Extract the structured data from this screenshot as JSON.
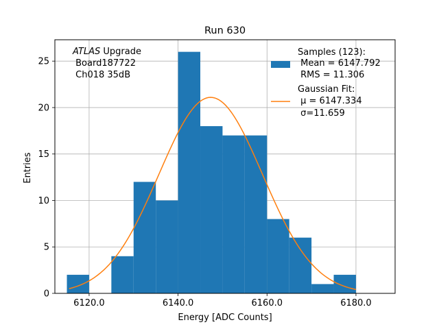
{
  "chart_data": {
    "type": "bar",
    "title": "Run 630",
    "xlabel": "Energy [ADC Counts]",
    "ylabel": "Entries",
    "xlim": [
      6112.3,
      6188.8
    ],
    "ylim": [
      0,
      27.3
    ],
    "grid": true,
    "bin_edges": [
      6115,
      6120,
      6125,
      6130,
      6135,
      6140,
      6145,
      6150,
      6155,
      6160,
      6165,
      6170,
      6175,
      6180
    ],
    "counts": [
      2,
      0,
      4,
      12,
      10,
      26,
      18,
      17,
      17,
      8,
      6,
      1,
      2
    ],
    "x_ticks": [
      6120,
      6140,
      6160,
      6180
    ],
    "x_tick_labels": [
      "6120.0",
      "6140.0",
      "6160.0",
      "6180.0"
    ],
    "y_ticks": [
      0,
      5,
      10,
      15,
      20,
      25
    ],
    "y_tick_labels": [
      "0",
      "5",
      "10",
      "15",
      "20",
      "25"
    ],
    "fit": {
      "type": "gaussian",
      "mu": 6147.334,
      "sigma": 11.659,
      "amplitude": 21.1,
      "x_range": [
        6115.5,
        6180.0
      ]
    },
    "annotation": {
      "line1_italic": "ATLAS",
      "line1_rest": " Upgrade",
      "line2": " Board187722",
      "line3": " Ch018 35dB"
    },
    "legend": {
      "placement": "top-right",
      "hist_lines": [
        "Samples (123):",
        " Mean = 6147.792",
        " RMS = 11.306"
      ],
      "fit_lines": [
        "Gaussian Fit:",
        " μ = 6147.334",
        " σ=11.659"
      ]
    },
    "colors": {
      "bars": "#1f77b4",
      "fit": "#ff7f0e",
      "grid": "#b0b0b0"
    }
  }
}
